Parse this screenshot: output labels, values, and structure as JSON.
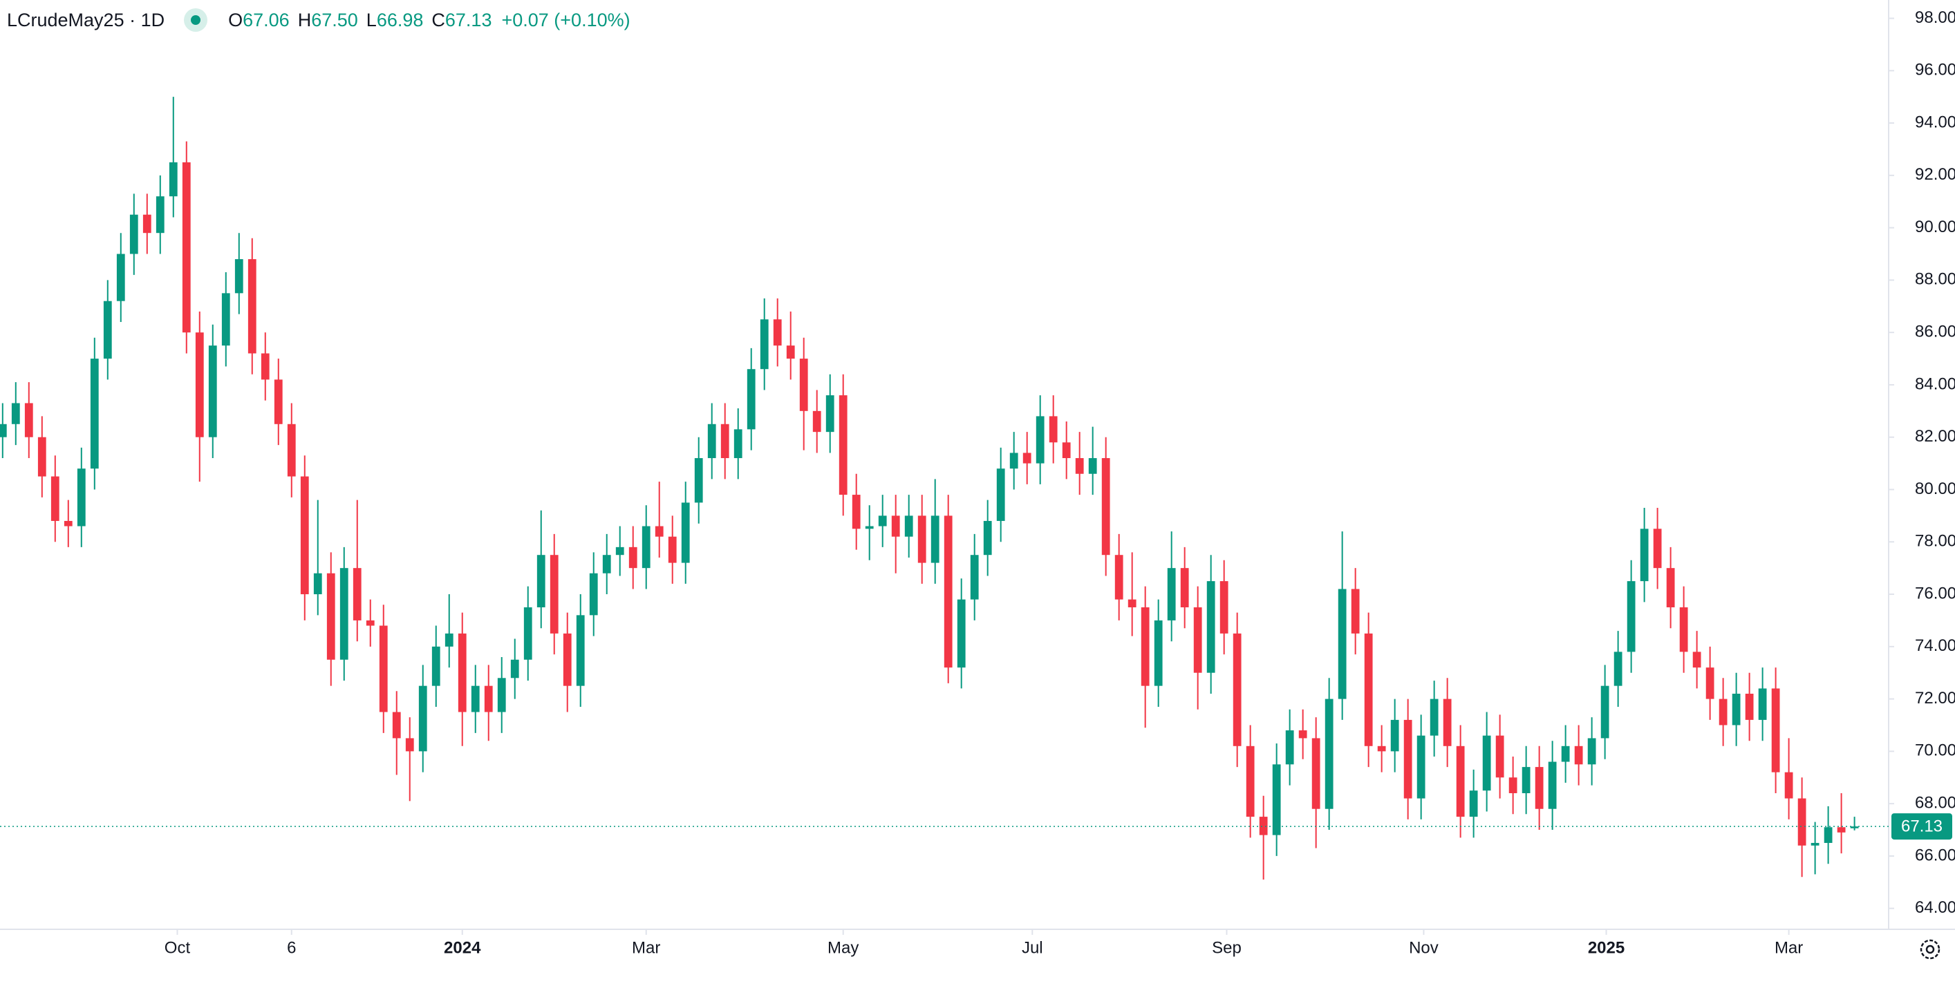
{
  "chart_data": {
    "type": "candlestick",
    "header": {
      "symbol": "LCrudeMay25 · 1D",
      "ohlc": [
        {
          "label": "O",
          "value": "67.06"
        },
        {
          "label": "H",
          "value": "67.50"
        },
        {
          "label": "L",
          "value": "66.98"
        },
        {
          "label": "C",
          "value": "67.13"
        }
      ],
      "change": "+0.07 (+0.10%)"
    },
    "up_color": "#089981",
    "down_color": "#f23645",
    "grid": false,
    "series": [
      {
        "open": [
          82,
          82.5,
          83.3,
          82,
          80.5,
          78.8,
          78.6,
          80.8,
          85,
          87.2,
          89,
          90.5,
          89.8,
          91.2,
          92.5,
          86,
          82,
          85.5,
          87.5,
          88.8,
          85.2,
          84.2,
          82.5,
          80.5,
          76,
          76.8,
          73.5,
          77,
          75,
          74.8,
          71.5,
          70.5,
          70,
          72.5,
          74,
          74.5,
          71.5,
          72.5,
          71.5,
          72.8,
          73.5,
          75.5,
          77.5,
          74.5,
          72.5,
          75.2,
          76.8,
          77.5,
          77.8,
          77,
          78.6,
          78.2,
          77.2,
          79.5,
          81.2,
          82.5,
          81.2,
          82.3,
          84.6,
          86.5,
          85.5,
          85,
          83,
          82.2,
          83.6,
          79.8,
          78.5,
          78.6,
          79,
          78.2,
          79,
          77.2,
          79,
          73.2,
          75.8,
          77.5,
          78.8,
          80.8,
          81.4,
          81,
          82.8,
          81.8,
          81.2,
          80.6,
          81.2,
          77.5,
          75.8,
          75.5,
          72.5,
          75,
          77,
          75.5,
          73,
          76.5,
          74.5,
          70.2,
          67.5,
          66.8,
          69.5,
          70.8,
          70.5,
          67.8,
          72,
          76.2,
          74.5,
          70.2,
          70,
          71.2,
          68.2,
          70.6,
          72,
          70.2,
          67.5,
          68.5,
          70.6,
          69,
          68.4,
          69.4,
          67.8,
          69.6,
          70.2,
          69.5,
          70.5,
          72.5,
          73.8,
          76.5,
          78.5,
          77,
          75.5,
          73.8,
          73.2,
          72,
          71,
          72.2,
          71.2,
          72.4,
          69.2,
          68.2,
          66.4,
          66.5,
          67.1,
          67.06
        ],
        "high": [
          83.3,
          84.1,
          84.1,
          82.8,
          81.3,
          79.6,
          81.6,
          85.8,
          88,
          89.8,
          91.3,
          91.3,
          92,
          95,
          93.3,
          86.8,
          86.3,
          88.3,
          89.8,
          89.6,
          86,
          85,
          83.3,
          81.3,
          79.6,
          77.6,
          77.8,
          79.6,
          75.8,
          75.6,
          72.3,
          71.3,
          73.3,
          74.8,
          76,
          75.3,
          73.3,
          73.3,
          73.6,
          74.3,
          76.3,
          79.2,
          78.3,
          75.3,
          76,
          77.6,
          78.3,
          78.6,
          78.6,
          79.4,
          80.3,
          79,
          80.3,
          82,
          83.3,
          83.3,
          83.1,
          85.4,
          87.3,
          87.3,
          86.8,
          85.8,
          83.8,
          84.4,
          84.4,
          80.6,
          79.4,
          79.8,
          79.8,
          79.8,
          79.8,
          80.4,
          79.8,
          76.6,
          78.3,
          79.6,
          81.6,
          82.2,
          82.2,
          83.6,
          83.6,
          82.6,
          82.2,
          82.4,
          82,
          78.3,
          77.6,
          76.3,
          75.8,
          78.4,
          77.8,
          76.3,
          77.5,
          77.3,
          75.3,
          71,
          68.3,
          70.3,
          71.6,
          71.6,
          71.3,
          72.8,
          78.4,
          77,
          75.3,
          71,
          72,
          72,
          71.4,
          72.7,
          72.8,
          71,
          69.3,
          71.5,
          71.4,
          69.8,
          70.2,
          70.2,
          70.4,
          71,
          71,
          71.3,
          73.3,
          74.6,
          77.3,
          79.3,
          79.3,
          77.8,
          76.3,
          74.6,
          74,
          72.8,
          73,
          73,
          73.2,
          73.2,
          70.5,
          69,
          67.3,
          67.9,
          68.4,
          67.5
        ],
        "low": [
          81.2,
          81.7,
          81.2,
          79.7,
          78,
          77.8,
          77.8,
          80,
          84.2,
          86.4,
          88.2,
          89,
          89,
          90.4,
          85.2,
          80.3,
          81.2,
          84.7,
          86.7,
          84.4,
          83.4,
          81.7,
          79.7,
          75,
          75.2,
          72.5,
          72.7,
          74.2,
          74,
          70.7,
          69.1,
          68.1,
          69.2,
          71.7,
          73.2,
          70.2,
          70.7,
          70.4,
          70.7,
          72,
          72.7,
          74.7,
          73.7,
          71.5,
          71.7,
          74.4,
          76,
          76.7,
          76.2,
          76.2,
          77.4,
          76.4,
          76.4,
          78.7,
          80.4,
          80.4,
          80.4,
          81.5,
          83.8,
          84.7,
          84.2,
          81.5,
          81.4,
          81.4,
          79,
          77.7,
          77.3,
          77.8,
          76.8,
          77.4,
          76.4,
          76.4,
          72.6,
          72.4,
          75,
          76.7,
          78,
          80,
          80.2,
          80.2,
          81,
          80.4,
          79.8,
          79.8,
          76.7,
          75,
          74.4,
          70.9,
          71.7,
          74.2,
          74.7,
          71.6,
          72.2,
          73.7,
          69.4,
          66.7,
          65.1,
          66,
          68.7,
          69.7,
          66.3,
          67,
          71.2,
          73.7,
          69.4,
          69.2,
          69.2,
          67.4,
          67.4,
          69.8,
          69.4,
          66.7,
          66.7,
          67.7,
          68.2,
          67.6,
          67.6,
          67,
          67,
          68.8,
          68.7,
          68.7,
          69.7,
          71.7,
          73,
          75.7,
          76.2,
          74.7,
          73,
          72.4,
          71.2,
          70.2,
          70.2,
          70.4,
          70.4,
          68.4,
          67.4,
          65.2,
          65.3,
          65.7,
          66.1,
          66.98
        ],
        "close": [
          82.5,
          83.3,
          82,
          80.5,
          78.8,
          78.6,
          80.8,
          85,
          87.2,
          89,
          90.5,
          89.8,
          91.2,
          92.5,
          86,
          82,
          85.5,
          87.5,
          88.8,
          85.2,
          84.2,
          82.5,
          80.5,
          76,
          76.8,
          73.5,
          77,
          75,
          74.8,
          71.5,
          70.5,
          70,
          72.5,
          74,
          74.5,
          71.5,
          72.5,
          71.5,
          72.8,
          73.5,
          75.5,
          77.5,
          74.5,
          72.5,
          75.2,
          76.8,
          77.5,
          77.8,
          77,
          78.6,
          78.2,
          77.2,
          79.5,
          81.2,
          82.5,
          81.2,
          82.3,
          84.6,
          86.5,
          85.5,
          85,
          83,
          82.2,
          83.6,
          79.8,
          78.5,
          78.6,
          79,
          78.2,
          79,
          77.2,
          79,
          73.2,
          75.8,
          77.5,
          78.8,
          80.8,
          81.4,
          81,
          82.8,
          81.8,
          81.2,
          80.6,
          81.2,
          77.5,
          75.8,
          75.5,
          72.5,
          75,
          77,
          75.5,
          73,
          76.5,
          74.5,
          70.2,
          67.5,
          66.8,
          69.5,
          70.8,
          70.5,
          67.8,
          72,
          76.2,
          74.5,
          70.2,
          70,
          71.2,
          68.2,
          70.6,
          72,
          70.2,
          67.5,
          68.5,
          70.6,
          69,
          68.4,
          69.4,
          67.8,
          69.6,
          70.2,
          69.5,
          70.5,
          72.5,
          73.8,
          76.5,
          78.5,
          77,
          75.5,
          73.8,
          73.2,
          72,
          71,
          72.2,
          71.2,
          72.4,
          69.2,
          68.2,
          66.4,
          66.5,
          67.1,
          66.9,
          67.13
        ]
      }
    ],
    "ylim": [
      63.2,
      98.7
    ],
    "yticks": [
      {
        "value": 64,
        "label": "64.00"
      },
      {
        "value": 66,
        "label": "66.00"
      },
      {
        "value": 68,
        "label": "68.00"
      },
      {
        "value": 70,
        "label": "70.00"
      },
      {
        "value": 72,
        "label": "72.00"
      },
      {
        "value": 74,
        "label": "74.00"
      },
      {
        "value": 76,
        "label": "76.00"
      },
      {
        "value": 78,
        "label": "78.00"
      },
      {
        "value": 80,
        "label": "80.00"
      },
      {
        "value": 82,
        "label": "82.00"
      },
      {
        "value": 84,
        "label": "84.00"
      },
      {
        "value": 86,
        "label": "86.00"
      },
      {
        "value": 88,
        "label": "88.00"
      },
      {
        "value": 90,
        "label": "90.00"
      },
      {
        "value": 92,
        "label": "92.00"
      },
      {
        "value": 94,
        "label": "94.00"
      },
      {
        "value": 96,
        "label": "96.00"
      },
      {
        "value": 98,
        "label": "98.00"
      }
    ],
    "xlim": [
      -0.2,
      143.6
    ],
    "xticks": [
      {
        "value": 13.3,
        "label": "Oct"
      },
      {
        "value": 22,
        "label": "6"
      },
      {
        "value": 35,
        "label": "2024"
      },
      {
        "value": 49,
        "label": "Mar"
      },
      {
        "value": 64,
        "label": "May"
      },
      {
        "value": 78.4,
        "label": "Jul"
      },
      {
        "value": 93.2,
        "label": "Sep"
      },
      {
        "value": 108.2,
        "label": "Nov"
      },
      {
        "value": 122.1,
        "label": "2025"
      },
      {
        "value": 136,
        "label": "Mar"
      }
    ],
    "last_price": {
      "value": 67.13,
      "label": "67.13"
    }
  }
}
